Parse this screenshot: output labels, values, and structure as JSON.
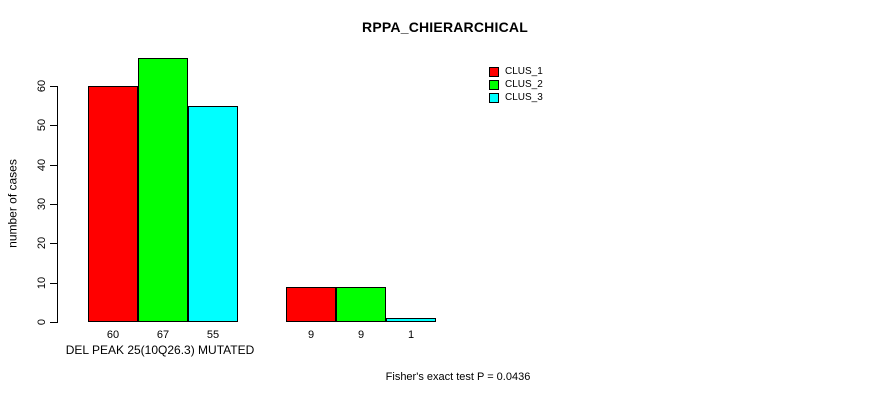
{
  "chart_data": {
    "type": "bar",
    "title": "RPPA_CHIERARCHICAL",
    "ylabel": "number of cases",
    "xlabel": "",
    "y_ticks": [
      0,
      10,
      20,
      30,
      40,
      50,
      60
    ],
    "ylim": [
      0,
      67
    ],
    "grid": false,
    "legend_position": "top-right",
    "series": [
      {
        "name": "CLUS_1",
        "color": "#ff0000"
      },
      {
        "name": "CLUS_2",
        "color": "#00ff00"
      },
      {
        "name": "CLUS_3",
        "color": "#00ffff"
      }
    ],
    "groups": [
      {
        "label": "DEL PEAK 25(10Q26.3) MUTATED",
        "values": [
          60,
          67,
          55
        ]
      },
      {
        "label": "",
        "values": [
          9,
          9,
          1
        ]
      }
    ],
    "annotation": "Fisher's exact test P = 0.0436"
  }
}
